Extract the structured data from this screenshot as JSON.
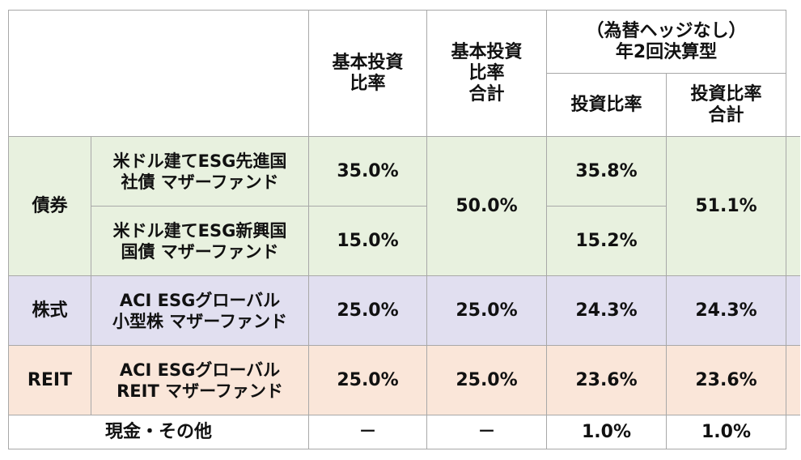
{
  "header": {
    "blank": "",
    "base_ratio": [
      "基本投資",
      "比率"
    ],
    "base_total": [
      "基本投資",
      "比率",
      "合計"
    ],
    "hedge_group": [
      "（為替ヘッジなし）",
      "年2回決算型"
    ],
    "inv_ratio": "投資比率",
    "inv_total": [
      "投資比率",
      "合計"
    ]
  },
  "rows": {
    "bond": {
      "category": "債券",
      "fund1": [
        "米ドル建てESG先進国",
        "社債 マザーファンド"
      ],
      "fund1_base": "35.0%",
      "fund1_inv": "35.8%",
      "fund2": [
        "米ドル建てESG新興国",
        "国債 マザーファンド"
      ],
      "fund2_base": "15.0%",
      "fund2_inv": "15.2%",
      "base_total": "50.0%",
      "inv_total": "51.1%"
    },
    "stock": {
      "category": "株式",
      "fund": [
        "ACI ESGグローバル",
        "小型株 マザーファンド"
      ],
      "base": "25.0%",
      "base_total": "25.0%",
      "inv": "24.3%",
      "inv_total": "24.3%"
    },
    "reit": {
      "category": "REIT",
      "fund": [
        "ACI ESGグローバル",
        "REIT マザーファンド"
      ],
      "base": "25.0%",
      "base_total": "25.0%",
      "inv": "23.6%",
      "inv_total": "23.6%"
    },
    "cash": {
      "label": "現金・その他",
      "base": "－",
      "base_total": "－",
      "inv": "1.0%",
      "inv_total": "1.0%"
    }
  },
  "colors": {
    "bond": "#e8f1df",
    "stock": "#e1dff0",
    "reit": "#fae6d9",
    "border": "#a8a8a8"
  }
}
